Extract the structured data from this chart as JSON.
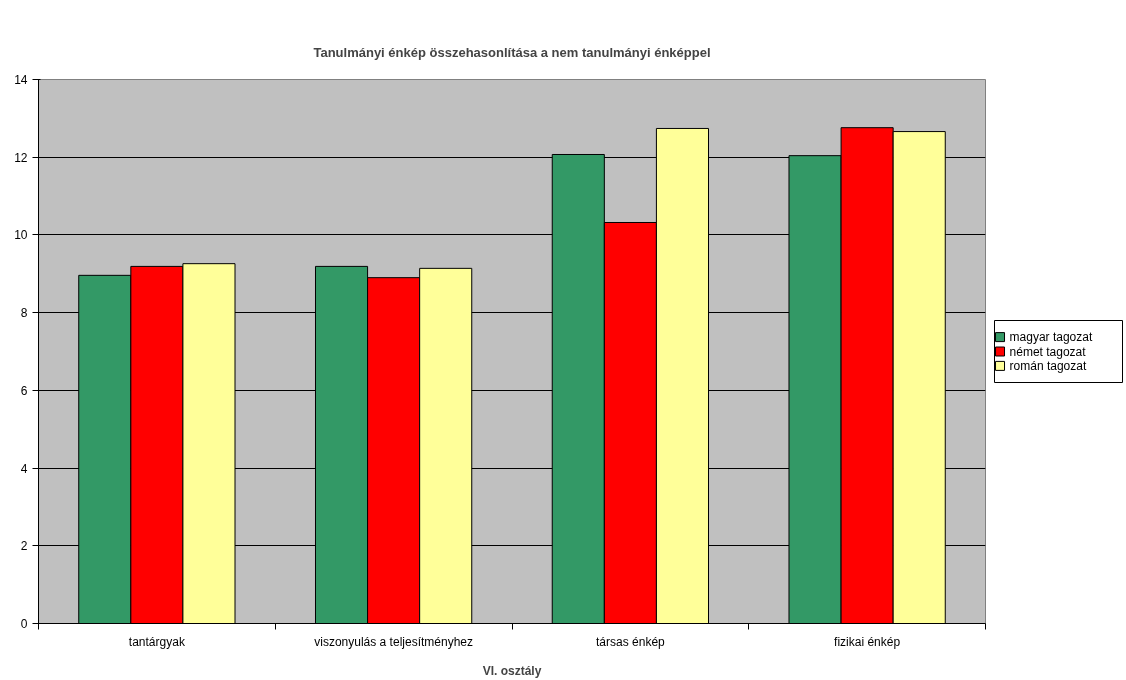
{
  "chart_data": {
    "type": "bar",
    "title": "Tanulmányi énkép összehasonlítása a nem tanulmányi énképpel",
    "xlabel": "VI. osztály",
    "categories": [
      "tantárgyak",
      "viszonyulás a teljesítményhez",
      "társas énkép",
      "fizikai énkép"
    ],
    "series": [
      {
        "name": "magyar tagozat",
        "color": "#339966",
        "values": [
          8.96,
          9.19,
          12.07,
          12.04
        ]
      },
      {
        "name": "német tagozat",
        "color": "#ff0000",
        "values": [
          9.19,
          8.9,
          10.32,
          12.76
        ]
      },
      {
        "name": "román tagozat",
        "color": "#ffff99",
        "values": [
          9.26,
          9.14,
          12.74,
          12.66
        ]
      }
    ],
    "ylim": [
      0,
      14
    ],
    "yticks": [
      0,
      2,
      4,
      6,
      8,
      10,
      12,
      14
    ],
    "grid": "y",
    "legend": "right"
  }
}
